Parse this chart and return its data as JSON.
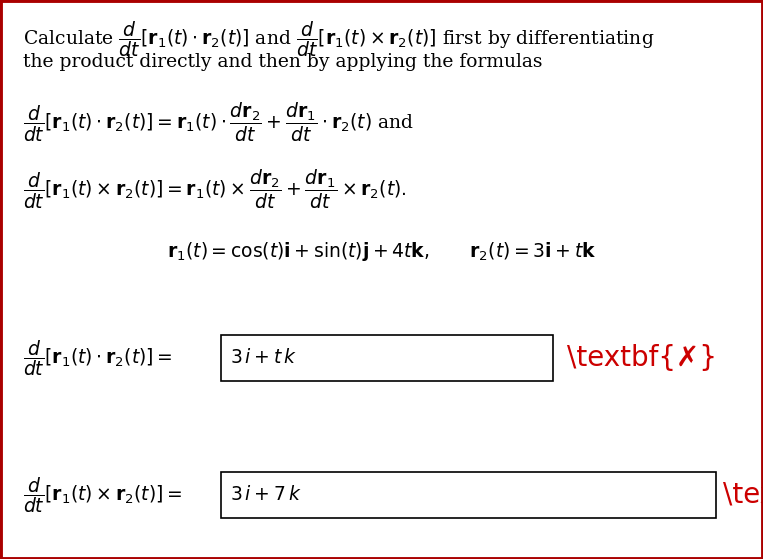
{
  "bg_color": "#ffffff",
  "border_color": "#aa0000",
  "text_color": "#000000",
  "red_x_color": "#cc0000",
  "figsize": [
    7.63,
    5.59
  ],
  "dpi": 100,
  "line1": "Calculate $\\dfrac{d}{dt}[\\mathbf{r}_1(t) \\cdot \\mathbf{r}_2(t)]$ and $\\dfrac{d}{dt}[\\mathbf{r}_1(t) \\times \\mathbf{r}_2(t)]$ first by differentiating",
  "line2": "the product directly and then by applying the formulas",
  "formula1": "$\\dfrac{d}{dt}[\\mathbf{r}_1(t) \\cdot \\mathbf{r}_2(t)] = \\mathbf{r}_1(t) \\cdot \\dfrac{d\\mathbf{r}_2}{dt} + \\dfrac{d\\mathbf{r}_1}{dt} \\cdot \\mathbf{r}_2(t)$ and",
  "formula2": "$\\dfrac{d}{dt}[\\mathbf{r}_1(t) \\times \\mathbf{r}_2(t)] = \\mathbf{r}_1(t) \\times \\dfrac{d\\mathbf{r}_2}{dt} + \\dfrac{d\\mathbf{r}_1}{dt} \\times \\mathbf{r}_2(t).$",
  "given": "$\\mathbf{r}_1(t) = \\cos(t)\\mathbf{i} + \\sin(t)\\mathbf{j} + 4t\\mathbf{k}, \\qquad \\mathbf{r}_2(t) = 3\\mathbf{i} + t\\mathbf{k}$",
  "answer1_label": "$\\dfrac{d}{dt}[\\mathbf{r}_1(t) \\cdot \\mathbf{r}_2(t)] = $",
  "answer1_content": "$3\\,i + t\\,k$",
  "answer2_label": "$\\dfrac{d}{dt}[\\mathbf{r}_1(t) \\times \\mathbf{r}_2(t)] = $",
  "answer2_content": "$3\\,i + 7\\,k$",
  "border_lw": 3.5,
  "fs": 13.5
}
